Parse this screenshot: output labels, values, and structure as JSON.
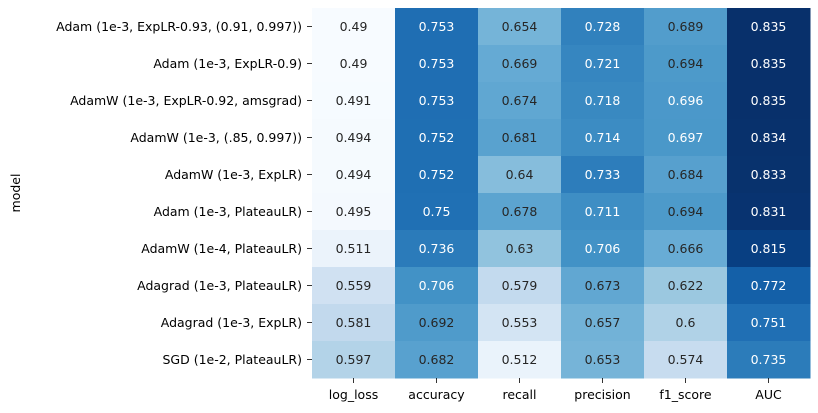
{
  "chart_data": {
    "type": "heatmap",
    "colormap": "Blues",
    "ylabel": "model",
    "xlabel": "",
    "columns": [
      "log_loss",
      "accuracy",
      "recall",
      "precision",
      "f1_score",
      "AUC"
    ],
    "rows": [
      "Adam (1e-3, ExpLR-0.93, (0.91, 0.997))",
      "Adam (1e-3, ExpLR-0.9)",
      "AdamW (1e-3, ExpLR-0.92, amsgrad)",
      "AdamW (1e-3, (.85, 0.997))",
      "AdamW (1e-3, ExpLR)",
      "Adam (1e-3, PlateauLR)",
      "AdamW (1e-4, PlateauLR)",
      "Adagrad (1e-3, PlateauLR)",
      "Adagrad (1e-3, ExpLR)",
      "SGD (1e-2, PlateauLR)"
    ],
    "values": [
      [
        "0.49",
        "0.753",
        "0.654",
        "0.728",
        "0.689",
        "0.835"
      ],
      [
        "0.49",
        "0.753",
        "0.669",
        "0.721",
        "0.694",
        "0.835"
      ],
      [
        "0.491",
        "0.753",
        "0.674",
        "0.718",
        "0.696",
        "0.835"
      ],
      [
        "0.494",
        "0.752",
        "0.681",
        "0.714",
        "0.697",
        "0.834"
      ],
      [
        "0.494",
        "0.752",
        "0.64",
        "0.733",
        "0.684",
        "0.833"
      ],
      [
        "0.495",
        "0.75",
        "0.678",
        "0.711",
        "0.694",
        "0.831"
      ],
      [
        "0.511",
        "0.736",
        "0.63",
        "0.706",
        "0.666",
        "0.815"
      ],
      [
        "0.559",
        "0.706",
        "0.579",
        "0.673",
        "0.622",
        "0.772"
      ],
      [
        "0.581",
        "0.692",
        "0.553",
        "0.657",
        "0.6",
        "0.751"
      ],
      [
        "0.597",
        "0.682",
        "0.512",
        "0.653",
        "0.574",
        "0.735"
      ]
    ],
    "color_range": [
      0.49,
      0.835
    ]
  }
}
